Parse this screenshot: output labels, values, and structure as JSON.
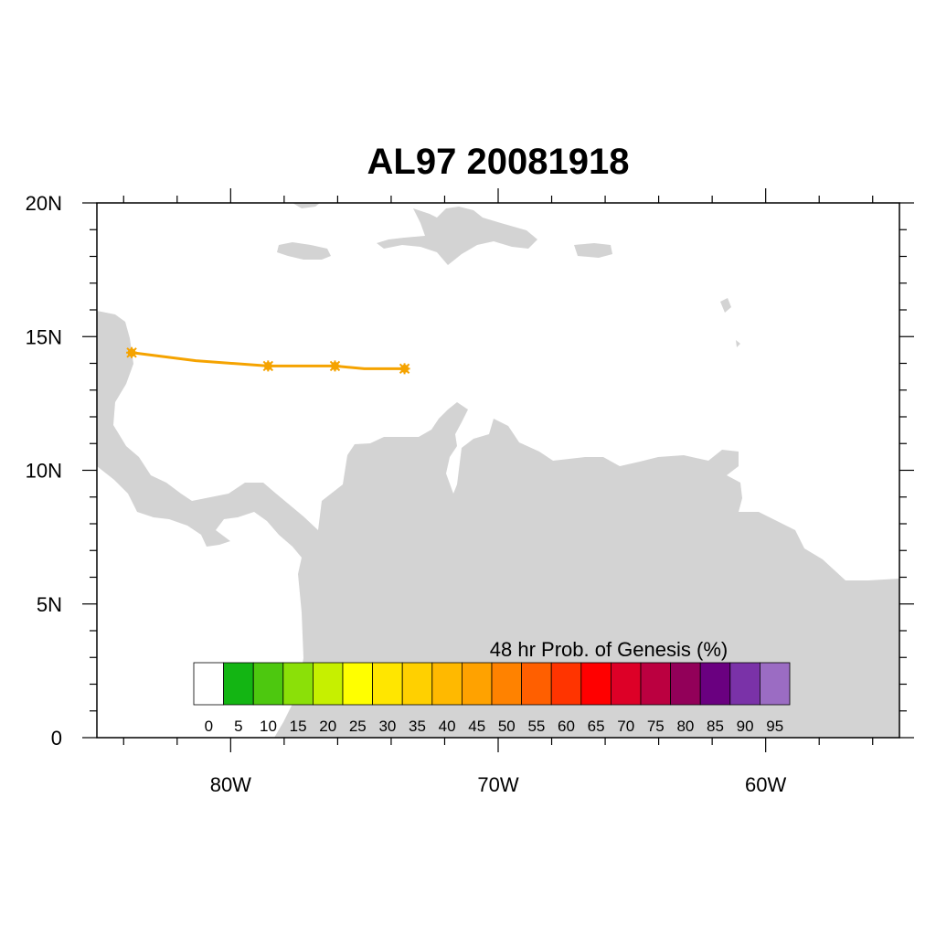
{
  "title": "AL97 20081918",
  "colors": {
    "land": "#d3d3d3",
    "track": "#f5a300",
    "frame": "#000000"
  },
  "map": {
    "lon_range": [
      -85,
      -55
    ],
    "lat_range": [
      0,
      20
    ],
    "lon_ticks": [
      {
        "value": -80,
        "label": "80W"
      },
      {
        "value": -70,
        "label": "70W"
      },
      {
        "value": -60,
        "label": "60W"
      }
    ],
    "lat_ticks": [
      {
        "value": 20,
        "label": "20N"
      },
      {
        "value": 15,
        "label": "15N"
      },
      {
        "value": 10,
        "label": "10N"
      },
      {
        "value": 5,
        "label": "5N"
      },
      {
        "value": 0,
        "label": "0"
      }
    ]
  },
  "track": {
    "points": [
      {
        "lon": -83.7,
        "lat": 14.4,
        "marked": true
      },
      {
        "lon": -81.3,
        "lat": 14.1,
        "marked": false
      },
      {
        "lon": -78.6,
        "lat": 13.9,
        "marked": true
      },
      {
        "lon": -76.1,
        "lat": 13.9,
        "marked": true
      },
      {
        "lon": -75.0,
        "lat": 13.8,
        "marked": false
      },
      {
        "lon": -73.5,
        "lat": 13.8,
        "marked": true
      }
    ]
  },
  "colorbar": {
    "title": "48 hr Prob. of Genesis (%)",
    "labels": [
      "0",
      "5",
      "10",
      "15",
      "20",
      "25",
      "30",
      "35",
      "40",
      "45",
      "50",
      "55",
      "60",
      "65",
      "70",
      "75",
      "80",
      "85",
      "90",
      "95"
    ],
    "colors": [
      "#ffffff",
      "#13b513",
      "#4dc80f",
      "#8be008",
      "#c6f000",
      "#ffff00",
      "#ffe600",
      "#ffd000",
      "#ffb900",
      "#ffa200",
      "#ff8200",
      "#ff5f00",
      "#ff3400",
      "#ff0000",
      "#dd0027",
      "#bb0040",
      "#920059",
      "#6a0080",
      "#7a32a8",
      "#9b6cc3"
    ]
  }
}
